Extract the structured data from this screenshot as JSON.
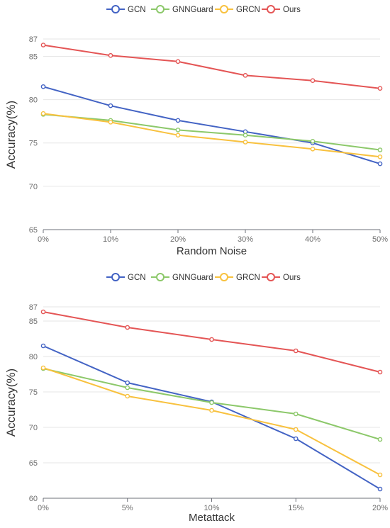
{
  "chart_data": [
    {
      "type": "line",
      "xlabel": "Random Noise",
      "ylabel": "Accuracy(%)",
      "categories": [
        "0%",
        "10%",
        "20%",
        "30%",
        "40%",
        "50%"
      ],
      "yticks": [
        65,
        70,
        75,
        80,
        85,
        87
      ],
      "ylim": [
        65,
        87
      ],
      "grid": "horizontal",
      "legend": "top",
      "series": [
        {
          "name": "GCN",
          "color": "#4363c4",
          "values": [
            81.5,
            79.3,
            77.6,
            76.3,
            75.0,
            72.6
          ]
        },
        {
          "name": "GNNGuard",
          "color": "#8cc86a",
          "values": [
            78.3,
            77.6,
            76.5,
            75.9,
            75.2,
            74.2
          ]
        },
        {
          "name": "GRCN",
          "color": "#f8c13e",
          "values": [
            78.4,
            77.4,
            75.9,
            75.1,
            74.3,
            73.4
          ]
        },
        {
          "name": "Ours",
          "color": "#e45555",
          "values": [
            86.3,
            85.1,
            84.4,
            82.8,
            82.2,
            81.3
          ]
        }
      ]
    },
    {
      "type": "line",
      "xlabel": "Metattack",
      "ylabel": "Accuracy(%)",
      "categories": [
        "0%",
        "5%",
        "10%",
        "15%",
        "20%"
      ],
      "yticks": [
        60,
        65,
        70,
        75,
        80,
        85,
        87
      ],
      "ylim": [
        60,
        87
      ],
      "grid": "horizontal",
      "legend": "top",
      "series": [
        {
          "name": "GCN",
          "color": "#4363c4",
          "values": [
            81.5,
            76.3,
            73.6,
            68.4,
            61.3
          ]
        },
        {
          "name": "GNNGuard",
          "color": "#8cc86a",
          "values": [
            78.3,
            75.6,
            73.5,
            71.9,
            68.3
          ]
        },
        {
          "name": "GRCN",
          "color": "#f8c13e",
          "values": [
            78.4,
            74.4,
            72.4,
            69.7,
            63.3
          ]
        },
        {
          "name": "Ours",
          "color": "#e45555",
          "values": [
            86.3,
            84.1,
            82.4,
            80.8,
            77.8
          ]
        }
      ]
    }
  ]
}
